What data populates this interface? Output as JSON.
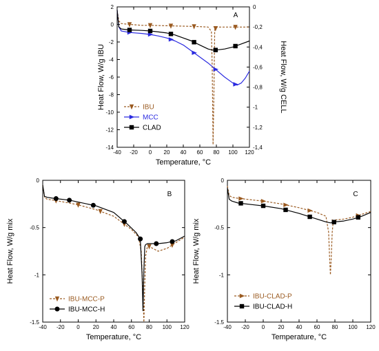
{
  "chart_data": [
    {
      "panel": "A",
      "type": "line",
      "xlabel": "Temperature, °C",
      "ylabel_left": "Heat Flow, W/g IBU",
      "ylabel_right": "Heat Flow, W/g CELL",
      "xlim": [
        -40,
        120
      ],
      "ylim_left": [
        -14,
        2
      ],
      "ylim_right": [
        -1.4,
        0
      ],
      "xticks": [
        "-40",
        "-20",
        "0",
        "20",
        "40",
        "60",
        "80",
        "100",
        "120"
      ],
      "yticks_left": [
        "2",
        "0",
        "-2",
        "-4",
        "-6",
        "-8",
        "-10",
        "-12",
        "-14"
      ],
      "yticks_right": [
        "0",
        "-0,2",
        "-0,4",
        "-0,6",
        "-0,8",
        "-1",
        "-1,2",
        "-1,4"
      ],
      "legend": [
        "IBU",
        "MCC",
        "CLAD"
      ],
      "series": [
        {
          "name": "IBU",
          "axis": "left",
          "color": "#9a5a20",
          "style": "dashed",
          "marker": "triangle",
          "x": [
            -40,
            -38,
            -35,
            -25,
            -10,
            0,
            20,
            40,
            60,
            70,
            74,
            75,
            76,
            77,
            78,
            80,
            90,
            100,
            110,
            120
          ],
          "y": [
            1.6,
            0.4,
            0.1,
            0.0,
            -0.1,
            -0.1,
            -0.15,
            -0.2,
            -0.25,
            -0.3,
            -0.8,
            -5,
            -13.7,
            -8,
            -0.6,
            -0.3,
            -0.3,
            -0.3,
            -0.3,
            -0.3
          ],
          "markers_x": [
            -25,
            0,
            25,
            53,
            79,
            103
          ]
        },
        {
          "name": "MCC",
          "axis": "right",
          "color": "#2a2ae0",
          "style": "solid",
          "marker": "triangle-right",
          "x": [
            -40,
            -38,
            -35,
            -25,
            -10,
            0,
            10,
            20,
            30,
            40,
            50,
            60,
            70,
            80,
            90,
            100,
            105,
            110,
            115,
            120
          ],
          "y": [
            -0.03,
            -0.2,
            -0.24,
            -0.255,
            -0.265,
            -0.275,
            -0.29,
            -0.31,
            -0.34,
            -0.38,
            -0.44,
            -0.5,
            -0.56,
            -0.63,
            -0.7,
            -0.76,
            -0.78,
            -0.76,
            -0.71,
            -0.64
          ],
          "markers_x": [
            -25,
            0,
            25,
            53,
            79,
            103
          ]
        },
        {
          "name": "CLAD",
          "axis": "right",
          "color": "#000000",
          "style": "solid",
          "marker": "square",
          "x": [
            -40,
            -38,
            -35,
            -25,
            -10,
            0,
            10,
            20,
            30,
            40,
            50,
            60,
            70,
            75,
            80,
            90,
            100,
            110,
            120
          ],
          "y": [
            -0.03,
            -0.2,
            -0.22,
            -0.23,
            -0.235,
            -0.24,
            -0.25,
            -0.26,
            -0.28,
            -0.31,
            -0.34,
            -0.38,
            -0.42,
            -0.43,
            -0.43,
            -0.42,
            -0.4,
            -0.37,
            -0.34
          ],
          "markers_x": [
            -25,
            0,
            25,
            53,
            79,
            103
          ]
        }
      ]
    },
    {
      "panel": "B",
      "type": "line",
      "xlabel": "Temperature, °C",
      "ylabel": "Heat Flow, W/g mix",
      "xlim": [
        -40,
        120
      ],
      "ylim": [
        -1.5,
        0
      ],
      "xticks": [
        "-40",
        "-20",
        "0",
        "20",
        "40",
        "60",
        "80",
        "100",
        "120"
      ],
      "yticks": [
        "0",
        "-0.5",
        "-1",
        "-1.5"
      ],
      "legend": [
        "IBU-MCC-P",
        "IBU-MCC-H"
      ],
      "series": [
        {
          "name": "IBU-MCC-P",
          "color": "#9a5a20",
          "style": "dashed",
          "marker": "triangle",
          "x": [
            -40,
            -38,
            -35,
            -28,
            -10,
            0,
            20,
            40,
            60,
            68,
            71,
            73,
            74,
            75,
            76,
            78,
            80,
            90,
            100,
            110,
            120
          ],
          "y": [
            -0.05,
            -0.18,
            -0.2,
            -0.21,
            -0.24,
            -0.26,
            -0.31,
            -0.38,
            -0.52,
            -0.6,
            -0.75,
            -1.2,
            -1.5,
            -1.1,
            -0.8,
            -0.7,
            -0.7,
            -0.75,
            -0.72,
            -0.66,
            -0.6
          ],
          "markers_x": [
            -25,
            0,
            25,
            52,
            80,
            106
          ]
        },
        {
          "name": "IBU-MCC-H",
          "color": "#000000",
          "style": "solid",
          "marker": "circle",
          "x": [
            -40,
            -38,
            -35,
            -28,
            -10,
            0,
            20,
            40,
            55,
            65,
            70,
            72,
            73,
            74,
            75,
            76,
            78,
            80,
            90,
            100,
            110,
            120
          ],
          "y": [
            -0.05,
            -0.17,
            -0.18,
            -0.19,
            -0.21,
            -0.23,
            -0.27,
            -0.34,
            -0.46,
            -0.55,
            -0.62,
            -1.0,
            -1.38,
            -0.95,
            -0.7,
            -0.68,
            -0.67,
            -0.67,
            -0.67,
            -0.66,
            -0.64,
            -0.59
          ],
          "markers_x": [
            -25,
            -10,
            17,
            52,
            70,
            88,
            106
          ]
        }
      ]
    },
    {
      "panel": "C",
      "type": "line",
      "xlabel": "Temperature, °C",
      "ylabel": "Heat Flow, W/g mix",
      "xlim": [
        -40,
        120
      ],
      "ylim": [
        -1.5,
        0
      ],
      "xticks": [
        "-40",
        "-20",
        "0",
        "20",
        "40",
        "60",
        "80",
        "100",
        "120"
      ],
      "yticks": [
        "0",
        "-0.5",
        "-1",
        "-1.5"
      ],
      "legend": [
        "IBU-CLAD-P",
        "IBU-CLAD-H"
      ],
      "series": [
        {
          "name": "IBU-CLAD-P",
          "color": "#9a5a20",
          "style": "dashed",
          "marker": "triangle-right",
          "x": [
            -40,
            -38,
            -35,
            -28,
            -10,
            0,
            20,
            40,
            60,
            70,
            73,
            74,
            75,
            76,
            77,
            78,
            80,
            90,
            100,
            110,
            120
          ],
          "y": [
            -0.06,
            -0.16,
            -0.18,
            -0.19,
            -0.21,
            -0.22,
            -0.25,
            -0.29,
            -0.34,
            -0.38,
            -0.55,
            -0.8,
            -1.0,
            -0.8,
            -0.55,
            -0.45,
            -0.42,
            -0.41,
            -0.39,
            -0.36,
            -0.33
          ],
          "markers_x": [
            -25,
            0,
            25,
            52,
            79,
            106
          ]
        },
        {
          "name": "IBU-CLAD-H",
          "color": "#000000",
          "style": "solid",
          "marker": "square",
          "x": [
            -40,
            -38,
            -35,
            -28,
            -10,
            0,
            20,
            40,
            60,
            70,
            75,
            80,
            90,
            100,
            110,
            120
          ],
          "y": [
            -0.08,
            -0.2,
            -0.22,
            -0.24,
            -0.26,
            -0.27,
            -0.3,
            -0.35,
            -0.41,
            -0.44,
            -0.45,
            -0.44,
            -0.43,
            -0.41,
            -0.38,
            -0.34
          ],
          "markers_x": [
            -25,
            0,
            25,
            52,
            79,
            106
          ]
        }
      ]
    }
  ]
}
